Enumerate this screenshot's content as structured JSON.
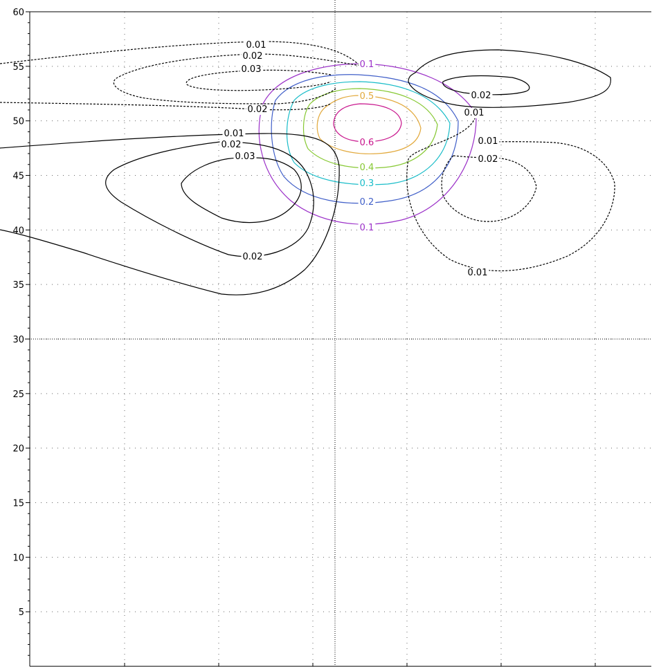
{
  "chart_data": {
    "type": "contour",
    "title": "",
    "xlabel": "",
    "ylabel": "",
    "ylim": [
      0,
      60
    ],
    "y_ticks": [
      5,
      10,
      15,
      20,
      25,
      30,
      35,
      40,
      45,
      50,
      55,
      60
    ],
    "grid": true,
    "x_ticks_labeled": false,
    "contour_levels": [
      {
        "label": "0.01",
        "value": 0.01,
        "sign": "positive",
        "style": "solid",
        "color": "#000000"
      },
      {
        "label": "0.02",
        "value": 0.02,
        "sign": "positive",
        "style": "solid",
        "color": "#000000"
      },
      {
        "label": "0.03",
        "value": 0.03,
        "sign": "positive",
        "style": "solid",
        "color": "#000000"
      },
      {
        "label": "0.01",
        "value": -0.01,
        "sign": "negative",
        "style": "dashed",
        "color": "#000000"
      },
      {
        "label": "0.02",
        "value": -0.02,
        "sign": "negative",
        "style": "dashed",
        "color": "#000000"
      },
      {
        "label": "0.03",
        "value": -0.03,
        "sign": "negative",
        "style": "dashed",
        "color": "#000000"
      },
      {
        "label": "0.1",
        "value": 0.1,
        "style": "solid",
        "color": "#9b30c8"
      },
      {
        "label": "0.2",
        "value": 0.2,
        "style": "solid",
        "color": "#3f5ec8"
      },
      {
        "label": "0.3",
        "value": 0.3,
        "style": "solid",
        "color": "#18bcc8"
      },
      {
        "label": "0.4",
        "value": 0.4,
        "style": "solid",
        "color": "#86c832"
      },
      {
        "label": "0.5",
        "value": 0.5,
        "style": "solid",
        "color": "#e2a93c"
      },
      {
        "label": "0.6",
        "value": 0.6,
        "style": "solid",
        "color": "#c8148c"
      }
    ]
  }
}
